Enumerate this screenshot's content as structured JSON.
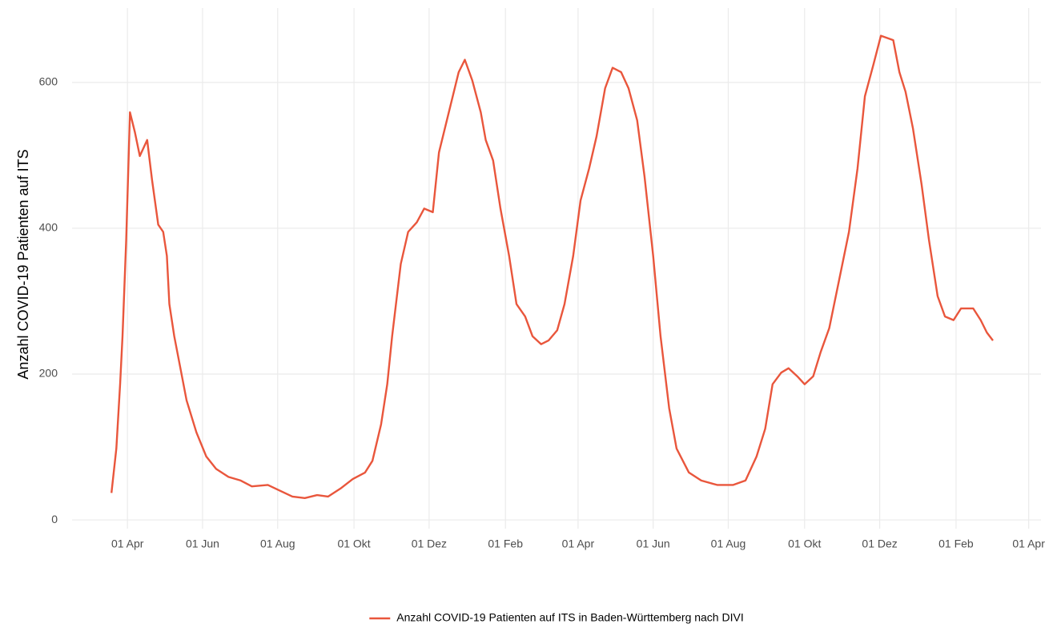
{
  "chart_data": {
    "type": "line",
    "y_label": "Anzahl COVID-19 Patienten auf ITS",
    "x": [
      78,
      82,
      85,
      87,
      90,
      92,
      93,
      97,
      101,
      107,
      111,
      116,
      120,
      123,
      125,
      129,
      134,
      139,
      147,
      155,
      163,
      173,
      183,
      192,
      205,
      215,
      225,
      235,
      245,
      254,
      264,
      274,
      284,
      290,
      297,
      302,
      306,
      313,
      319,
      326,
      332,
      339,
      344,
      352,
      360,
      365,
      371,
      378,
      382,
      388,
      394,
      401,
      407,
      414,
      420,
      427,
      433,
      440,
      446,
      453,
      459,
      466,
      472,
      479,
      485,
      492,
      498,
      505,
      511,
      518,
      524,
      531,
      537,
      547,
      557,
      570,
      583,
      593,
      602,
      609,
      615,
      622,
      628,
      635,
      641,
      648,
      654,
      661,
      669,
      677,
      684,
      690,
      697,
      703,
      713,
      718,
      723,
      729,
      736,
      742,
      749,
      755,
      762,
      768,
      778,
      784,
      789,
      794
    ],
    "series": [
      {
        "name": "Anzahl COVID-19 Patienten auf ITS in Baden-Württemberg nach DIVI",
        "color": "#E9563C",
        "values": [
          37,
          98,
          186,
          252,
          384,
          499,
          559,
          532,
          499,
          521,
          466,
          405,
          395,
          362,
          296,
          252,
          208,
          164,
          120,
          87,
          70,
          59,
          54,
          46,
          48,
          40,
          32,
          30,
          34,
          32,
          43,
          56,
          65,
          81,
          131,
          186,
          252,
          351,
          395,
          408,
          427,
          422,
          504,
          559,
          614,
          631,
          603,
          559,
          521,
          493,
          427,
          362,
          296,
          279,
          252,
          241,
          246,
          260,
          296,
          362,
          438,
          482,
          526,
          592,
          620,
          614,
          592,
          548,
          471,
          362,
          252,
          153,
          98,
          65,
          54,
          48,
          48,
          54,
          87,
          125,
          186,
          202,
          208,
          197,
          186,
          197,
          230,
          263,
          329,
          395,
          482,
          581,
          625,
          664,
          658,
          614,
          587,
          537,
          460,
          384,
          307,
          279,
          274,
          290,
          290,
          274,
          257,
          246
        ]
      }
    ],
    "xlim": [
      46,
      833
    ],
    "xticks": [
      {
        "value": 91,
        "label": "01 Apr"
      },
      {
        "value": 152,
        "label": "01 Jun"
      },
      {
        "value": 213,
        "label": "01 Aug"
      },
      {
        "value": 275,
        "label": "01 Okt"
      },
      {
        "value": 336,
        "label": "01 Dez"
      },
      {
        "value": 398,
        "label": "01 Feb"
      },
      {
        "value": 457,
        "label": "01 Apr"
      },
      {
        "value": 518,
        "label": "01 Jun"
      },
      {
        "value": 579,
        "label": "01 Aug"
      },
      {
        "value": 641,
        "label": "01 Okt"
      },
      {
        "value": 702,
        "label": "01 Dez"
      },
      {
        "value": 764,
        "label": "01 Feb"
      },
      {
        "value": 823,
        "label": "01 Apr"
      }
    ],
    "ylim": [
      -12,
      702
    ],
    "yticks": [
      0,
      200,
      400,
      600
    ],
    "grid": true,
    "legend": "bottom"
  }
}
